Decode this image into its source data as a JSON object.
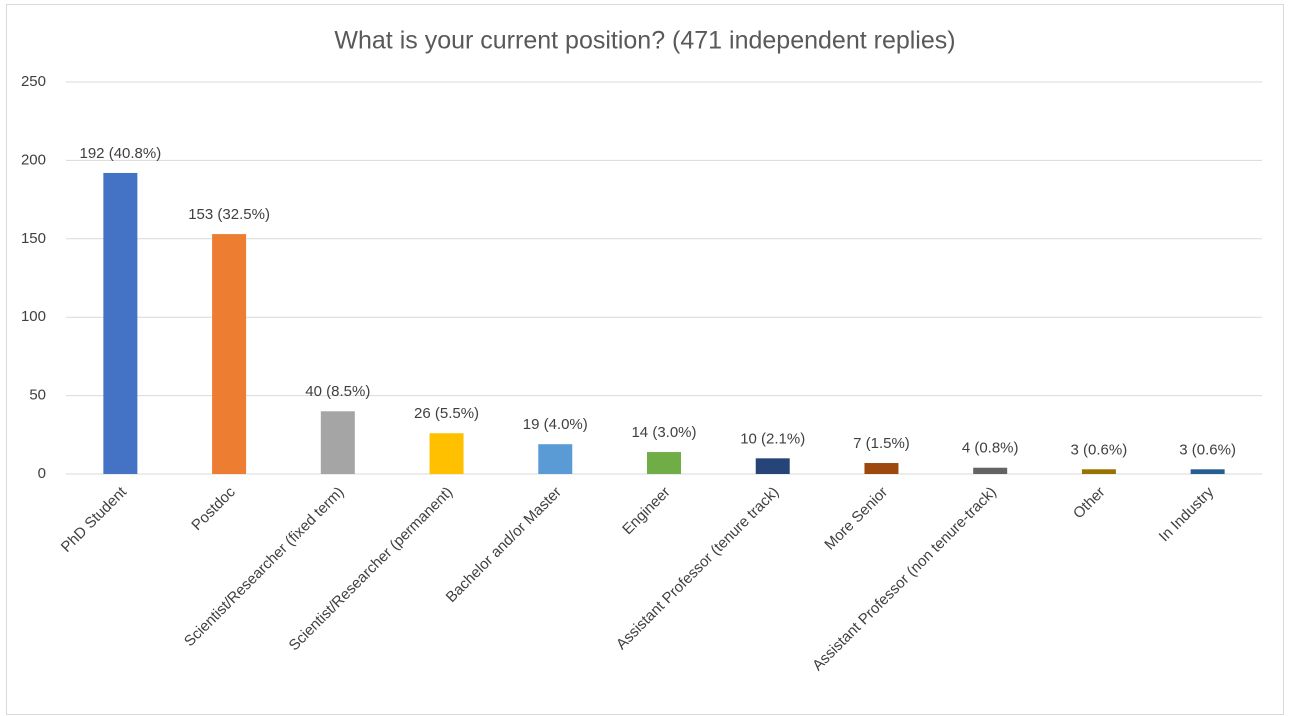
{
  "chart_data": {
    "type": "bar",
    "title": "What is your current position? (471 independent replies)",
    "categories": [
      "PhD Student",
      "Postdoc",
      "Scientist/Researcher (fixed term)",
      "Scientist/Researcher (permanent)",
      "Bachelor and/or Master",
      "Engineer",
      "Assistant Professor (tenure track)",
      "More Senior",
      "Assistant Professor (non tenure-track)",
      "Other",
      "In Industry"
    ],
    "values": [
      192,
      153,
      40,
      26,
      19,
      14,
      10,
      7,
      4,
      3,
      3
    ],
    "value_labels": [
      "192 (40.8%)",
      "153 (32.5%)",
      "40 (8.5%)",
      "26 (5.5%)",
      "19 (4.0%)",
      "14 (3.0%)",
      "10 (2.1%)",
      "7 (1.5%)",
      "4 (0.8%)",
      "3 (0.6%)",
      "3 (0.6%)"
    ],
    "colors": [
      "#4472c4",
      "#ed7d31",
      "#a5a5a5",
      "#ffc000",
      "#5b9bd5",
      "#70ad47",
      "#264478",
      "#9e480e",
      "#636363",
      "#997300",
      "#255e91"
    ],
    "ylim": [
      0,
      250
    ],
    "yticks": [
      0,
      50,
      100,
      150,
      200,
      250
    ],
    "grid": true
  }
}
